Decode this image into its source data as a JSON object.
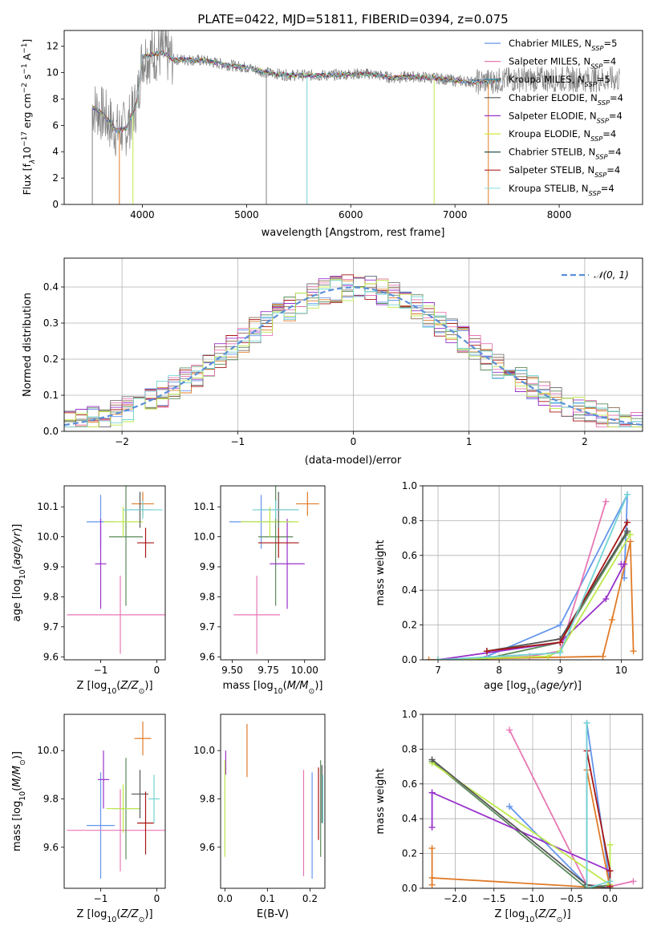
{
  "figure": {
    "title": "PLATE=0422, MJD=51811, FIBERID=0394, z=0.075"
  },
  "colors": {
    "tab": [
      "#6495ed",
      "#e77a9c",
      "#3b8fd1",
      "#5e8a6b",
      "#9a2fb0",
      "#e08a2a",
      "#4c5c5c",
      "#b01616",
      "#7fdcdc"
    ],
    "models": {
      "chabrier_miles": "#6495ed",
      "salpeter_miles": "#e87ab0",
      "kroupa_miles": "#1f8fa8",
      "chabrier_elodie": "#555555",
      "salpeter_elodie": "#9932cc",
      "kroupa_elodie": "#d4e83a",
      "chabrier_stelib": "#2f4f4f",
      "salpeter_stelib": "#b22222",
      "kroupa_stelib": "#8ee0e0",
      "data": "#808080",
      "orange": "#e07b28",
      "green": "#5b8a5b",
      "purple": "#9932cc",
      "pink": "#e877b4",
      "lime": "#bde84a",
      "darkred": "#a81616",
      "cyan": "#73d3d3"
    }
  },
  "chart_data": [
    {
      "type": "line",
      "name": "spectrum",
      "xlabel": "wavelength [Angstrom, rest frame]",
      "ylabel": "Flux [f",
      "ylabel_parts": [
        "Flux [f",
        "λ",
        "10",
        "−17",
        " erg cm",
        "−2",
        " s",
        "−1",
        " A",
        "−1",
        "]"
      ],
      "xlim": [
        3250,
        8800
      ],
      "ylim": [
        0,
        13.2
      ],
      "xticks": [
        "4000",
        "5000",
        "6000",
        "7000",
        "8000"
      ],
      "xtick_values": [
        4000,
        5000,
        6000,
        7000,
        8000
      ],
      "yticks": [
        "0",
        "2",
        "4",
        "6",
        "8",
        "10",
        "12"
      ],
      "ytick_values": [
        0,
        2,
        4,
        6,
        8,
        10,
        12
      ],
      "legend": [
        {
          "label": "Chabrier MILES, N",
          "sub": "SSP",
          "tail": "=5"
        },
        {
          "label": "Salpeter MILES, N",
          "sub": "SSP",
          "tail": "=4"
        },
        {
          "label": "Kroupa MILES, N",
          "sub": "SSP",
          "tail": "=5"
        },
        {
          "label": "Chabrier ELODIE, N",
          "sub": "SSP",
          "tail": "=4"
        },
        {
          "label": "Salpeter ELODIE, N",
          "sub": "SSP",
          "tail": "=4"
        },
        {
          "label": "Kroupa ELODIE, N",
          "sub": "SSP",
          "tail": "=4"
        },
        {
          "label": "Chabrier STELIB, N",
          "sub": "SSP",
          "tail": "=4"
        },
        {
          "label": "Salpeter STELIB, N",
          "sub": "SSP",
          "tail": "=4"
        },
        {
          "label": "Kroupa STELIB, N",
          "sub": "SSP",
          "tail": "=4"
        }
      ],
      "continuum_anchors": {
        "x": [
          3550,
          3650,
          3750,
          3850,
          3950,
          4000,
          4100,
          4200,
          4300,
          4400,
          4600,
          4800,
          5000,
          5200,
          5400,
          5600,
          5800,
          6000,
          6200,
          6400,
          6600,
          6800,
          7000,
          7200,
          7400,
          7600
        ],
        "y": [
          7.3,
          6.6,
          5.6,
          5.8,
          7.8,
          11.2,
          11.4,
          11.5,
          11.0,
          11.0,
          10.9,
          10.6,
          10.4,
          10.0,
          9.8,
          9.8,
          9.8,
          9.9,
          9.9,
          9.6,
          9.7,
          9.6,
          9.4,
          9.3,
          9.4,
          9.5
        ]
      }
    },
    {
      "type": "area",
      "name": "residual-histogram",
      "xlabel": "(data-model)/error",
      "ylabel": "Normed distribution",
      "xlim": [
        -2.5,
        2.5
      ],
      "ylim": [
        0,
        0.48
      ],
      "xticks": [
        "−2",
        "−1",
        "0",
        "1",
        "2"
      ],
      "xtick_values": [
        -2,
        -1,
        0,
        1,
        2
      ],
      "yticks": [
        "0.0",
        "0.1",
        "0.2",
        "0.3",
        "0.4"
      ],
      "ytick_values": [
        0,
        0.1,
        0.2,
        0.3,
        0.4
      ],
      "legend": [
        {
          "label": "𝒩(0, 1)"
        }
      ],
      "bin_width": 0.1,
      "grid": true
    },
    {
      "type": "scatter",
      "name": "age-vs-Z",
      "xlabel": "Z [log10(Z/Z⊙)]",
      "ylabel": "age [log10(age/yr)]",
      "xlim": [
        -1.65,
        0.15
      ],
      "ylim": [
        9.59,
        10.17
      ],
      "xticks": [
        "−1",
        "0"
      ],
      "xtick_values": [
        -1,
        0
      ],
      "yticks": [
        "9.6",
        "9.7",
        "9.8",
        "9.9",
        "10.0",
        "10.1"
      ],
      "ytick_values": [
        9.6,
        9.7,
        9.8,
        9.9,
        10.0,
        10.1
      ],
      "points": [
        {
          "x": -1.0,
          "y": 10.05,
          "xerr": 0.25,
          "yerr": 0.09,
          "color": "#6495ed"
        },
        {
          "x": -0.65,
          "y": 9.74,
          "xerr": 0.95,
          "yerr": 0.13,
          "color": "#e877b4"
        },
        {
          "x": -0.25,
          "y": 10.11,
          "xerr": 0.2,
          "yerr": 0.04,
          "color": "#e07b28"
        },
        {
          "x": -0.55,
          "y": 10.0,
          "xerr": 0.3,
          "yerr": 0.23,
          "color": "#5b8a5b"
        },
        {
          "x": -1.0,
          "y": 9.91,
          "xerr": 0.1,
          "yerr": 0.15,
          "color": "#9932cc"
        },
        {
          "x": -0.6,
          "y": 10.05,
          "xerr": 0.35,
          "yerr": 0.05,
          "color": "#bde84a"
        },
        {
          "x": -0.3,
          "y": 10.09,
          "xerr": 0.2,
          "yerr": 0.06,
          "color": "#555555"
        },
        {
          "x": -0.2,
          "y": 9.98,
          "xerr": 0.15,
          "yerr": 0.05,
          "color": "#a81616"
        },
        {
          "x": -0.25,
          "y": 10.09,
          "xerr": 0.35,
          "yerr": 0.03,
          "color": "#73d3d3"
        }
      ]
    },
    {
      "type": "scatter",
      "name": "age-vs-mass",
      "xlabel": "mass [log10(M/M⊙)]",
      "ylabel": "",
      "xlim": [
        9.42,
        10.14
      ],
      "ylim": [
        9.59,
        10.17
      ],
      "xticks": [
        "9.50",
        "9.75",
        "10.00"
      ],
      "xtick_values": [
        9.5,
        9.75,
        10.0
      ],
      "yticks": [
        "9.6",
        "9.7",
        "9.8",
        "9.9",
        "10.0",
        "10.1"
      ],
      "ytick_values": [
        9.6,
        9.7,
        9.8,
        9.9,
        10.0,
        10.1
      ],
      "points": [
        {
          "x": 9.7,
          "y": 10.05,
          "xerr": 0.22,
          "yerr": 0.09,
          "color": "#6495ed"
        },
        {
          "x": 9.67,
          "y": 9.74,
          "xerr": 0.16,
          "yerr": 0.13,
          "color": "#e877b4"
        },
        {
          "x": 10.02,
          "y": 10.11,
          "xerr": 0.08,
          "yerr": 0.04,
          "color": "#e07b28"
        },
        {
          "x": 9.8,
          "y": 10.0,
          "xerr": 0.12,
          "yerr": 0.23,
          "color": "#5b8a5b"
        },
        {
          "x": 9.88,
          "y": 9.91,
          "xerr": 0.12,
          "yerr": 0.15,
          "color": "#9932cc"
        },
        {
          "x": 9.76,
          "y": 10.05,
          "xerr": 0.2,
          "yerr": 0.05,
          "color": "#bde84a"
        },
        {
          "x": 9.82,
          "y": 10.09,
          "xerr": 0.14,
          "yerr": 0.06,
          "color": "#555555"
        },
        {
          "x": 9.82,
          "y": 9.98,
          "xerr": 0.14,
          "yerr": 0.05,
          "color": "#a81616"
        },
        {
          "x": 9.8,
          "y": 10.09,
          "xerr": 0.16,
          "yerr": 0.03,
          "color": "#73d3d3"
        }
      ]
    },
    {
      "type": "line",
      "name": "mass-weight-vs-age",
      "xlabel": "age [log10(age/yr)]",
      "ylabel": "mass weight",
      "xlim": [
        6.75,
        10.35
      ],
      "ylim": [
        0,
        1.0
      ],
      "xticks": [
        "7",
        "8",
        "9",
        "10"
      ],
      "xtick_values": [
        7,
        8,
        9,
        10
      ],
      "yticks": [
        "0.0",
        "0.2",
        "0.4",
        "0.6",
        "0.8",
        "1.0"
      ],
      "ytick_values": [
        0,
        0.2,
        0.4,
        0.6,
        0.8,
        1.0
      ],
      "grid": true,
      "series": [
        {
          "color": "#6495ed",
          "x": [
            7.8,
            9.0,
            10.1,
            10.05
          ],
          "y": [
            0.02,
            0.2,
            0.95,
            0.47
          ]
        },
        {
          "color": "#e877b4",
          "x": [
            7.8,
            8.5,
            9.0,
            9.75
          ],
          "y": [
            0.01,
            0.02,
            0.05,
            0.91
          ]
        },
        {
          "color": "#e07b28",
          "x": [
            6.85,
            9.7,
            9.85,
            10.15,
            10.2
          ],
          "y": [
            0.0,
            0.02,
            0.23,
            0.68,
            0.05
          ]
        },
        {
          "color": "#5b8a5b",
          "x": [
            7.7,
            9.0,
            10.1
          ],
          "y": [
            0.0,
            0.1,
            0.73
          ]
        },
        {
          "color": "#9932cc",
          "x": [
            7.0,
            9.0,
            9.75,
            10.05,
            10.0
          ],
          "y": [
            0.0,
            0.1,
            0.35,
            0.55,
            0.55
          ]
        },
        {
          "color": "#bde84a",
          "x": [
            7.0,
            8.8,
            9.0,
            10.15
          ],
          "y": [
            0.0,
            0.02,
            0.05,
            0.72
          ]
        },
        {
          "color": "#555555",
          "x": [
            7.8,
            9.0,
            10.1
          ],
          "y": [
            0.05,
            0.12,
            0.74
          ]
        },
        {
          "color": "#a81616",
          "x": [
            7.8,
            9.0,
            10.1
          ],
          "y": [
            0.05,
            0.1,
            0.79
          ]
        },
        {
          "color": "#73d3d3",
          "x": [
            7.0,
            9.0,
            10.1
          ],
          "y": [
            0.0,
            0.04,
            0.95
          ]
        }
      ]
    },
    {
      "type": "scatter",
      "name": "mass-vs-Z",
      "xlabel": "Z [log10(Z/Z⊙)]",
      "ylabel": "mass [log10(M/M⊙)]",
      "xlim": [
        -1.65,
        0.15
      ],
      "ylim": [
        9.43,
        10.15
      ],
      "xticks": [
        "−1",
        "0"
      ],
      "xtick_values": [
        -1,
        0
      ],
      "yticks": [
        "9.6",
        "9.8",
        "10.0"
      ],
      "ytick_values": [
        9.6,
        9.8,
        10.0
      ],
      "points": [
        {
          "x": -1.0,
          "y": 9.69,
          "xerr": 0.25,
          "yerr": 0.22,
          "color": "#6495ed"
        },
        {
          "x": -0.65,
          "y": 9.67,
          "xerr": 0.95,
          "yerr": 0.17,
          "color": "#e877b4"
        },
        {
          "x": -0.25,
          "y": 10.05,
          "xerr": 0.15,
          "yerr": 0.07,
          "color": "#e07b28"
        },
        {
          "x": -0.55,
          "y": 9.76,
          "xerr": 0.25,
          "yerr": 0.21,
          "color": "#5b8a5b"
        },
        {
          "x": -0.95,
          "y": 9.88,
          "xerr": 0.1,
          "yerr": 0.12,
          "color": "#9932cc"
        },
        {
          "x": -0.6,
          "y": 9.76,
          "xerr": 0.3,
          "yerr": 0.1,
          "color": "#bde84a"
        },
        {
          "x": -0.3,
          "y": 9.82,
          "xerr": 0.15,
          "yerr": 0.1,
          "color": "#555555"
        },
        {
          "x": -0.2,
          "y": 9.7,
          "xerr": 0.15,
          "yerr": 0.13,
          "color": "#a81616"
        },
        {
          "x": -0.05,
          "y": 9.8,
          "xerr": 0.1,
          "yerr": 0.1,
          "color": "#73d3d3"
        }
      ]
    },
    {
      "type": "scatter",
      "name": "mass-vs-ebv",
      "xlabel": "E(B-V)",
      "ylabel": "",
      "xlim": [
        -0.01,
        0.235
      ],
      "ylim": [
        9.43,
        10.15
      ],
      "xticks": [
        "0.0",
        "0.1",
        "0.2"
      ],
      "xtick_values": [
        0,
        0.1,
        0.2
      ],
      "yticks": [
        "9.6",
        "9.8",
        "10.0"
      ],
      "ytick_values": [
        9.6,
        9.8,
        10.0
      ],
      "points": [
        {
          "x": 0.205,
          "y": 9.69,
          "yerr": 0.22,
          "color": "#6495ed"
        },
        {
          "x": 0.185,
          "y": 9.7,
          "yerr": 0.22,
          "color": "#e877b4"
        },
        {
          "x": 0.052,
          "y": 10.0,
          "yerr": 0.11,
          "color": "#e07b28"
        },
        {
          "x": 0.225,
          "y": 9.76,
          "yerr": 0.2,
          "color": "#5b8a5b"
        },
        {
          "x": 0.002,
          "y": 9.95,
          "yerr": 0.05,
          "color": "#9932cc"
        },
        {
          "x": 0.0,
          "y": 9.76,
          "yerr": 0.2,
          "color": "#bde84a"
        },
        {
          "x": 0.228,
          "y": 9.82,
          "yerr": 0.12,
          "color": "#555555"
        },
        {
          "x": 0.22,
          "y": 9.78,
          "yerr": 0.15,
          "color": "#a81616"
        },
        {
          "x": 0.23,
          "y": 9.8,
          "yerr": 0.1,
          "color": "#73d3d3"
        }
      ]
    },
    {
      "type": "line",
      "name": "mass-weight-vs-Z",
      "xlabel": "Z [log10(Z/Z⊙)]",
      "ylabel": "mass weight",
      "xlim": [
        -2.42,
        0.42
      ],
      "ylim": [
        0,
        1.0
      ],
      "xticks": [
        "−2.0",
        "−1.5",
        "−1.0",
        "−0.5",
        "0.0"
      ],
      "xtick_values": [
        -2.0,
        -1.5,
        -1.0,
        -0.5,
        0.0
      ],
      "yticks": [
        "0.0",
        "0.2",
        "0.4",
        "0.6",
        "0.8",
        "1.0"
      ],
      "ytick_values": [
        0,
        0.2,
        0.4,
        0.6,
        0.8,
        1.0
      ],
      "grid": true,
      "series": [
        {
          "color": "#6495ed",
          "x": [
            -1.3,
            -0.3,
            -0.3,
            0.0
          ],
          "y": [
            0.47,
            0.02,
            0.95,
            0.02
          ]
        },
        {
          "color": "#e877b4",
          "x": [
            -1.3,
            -0.3,
            0.0,
            0.3
          ],
          "y": [
            0.91,
            0.02,
            0.01,
            0.04
          ]
        },
        {
          "color": "#e07b28",
          "x": [
            -2.3,
            -2.3,
            -2.3,
            0.0,
            -0.3
          ],
          "y": [
            0.02,
            0.23,
            0.06,
            0.0,
            0.68
          ]
        },
        {
          "color": "#5b8a5b",
          "x": [
            -2.3,
            -0.3,
            0.0
          ],
          "y": [
            0.73,
            0.0,
            0.02
          ]
        },
        {
          "color": "#9932cc",
          "x": [
            -2.3,
            -2.3,
            -2.3,
            0.0
          ],
          "y": [
            0.35,
            0.55,
            0.55,
            0.1
          ]
        },
        {
          "color": "#bde84a",
          "x": [
            -2.3,
            0.0,
            0.0
          ],
          "y": [
            0.72,
            0.02,
            0.25
          ]
        },
        {
          "color": "#555555",
          "x": [
            -2.3,
            -0.3,
            0.0
          ],
          "y": [
            0.74,
            0.02,
            0.0
          ]
        },
        {
          "color": "#a81616",
          "x": [
            -0.3,
            0.0,
            0.0
          ],
          "y": [
            0.79,
            0.1,
            0.01
          ]
        },
        {
          "color": "#73d3d3",
          "x": [
            -0.3,
            -0.3,
            0.0
          ],
          "y": [
            0.95,
            0.0,
            0.04
          ]
        }
      ]
    }
  ]
}
